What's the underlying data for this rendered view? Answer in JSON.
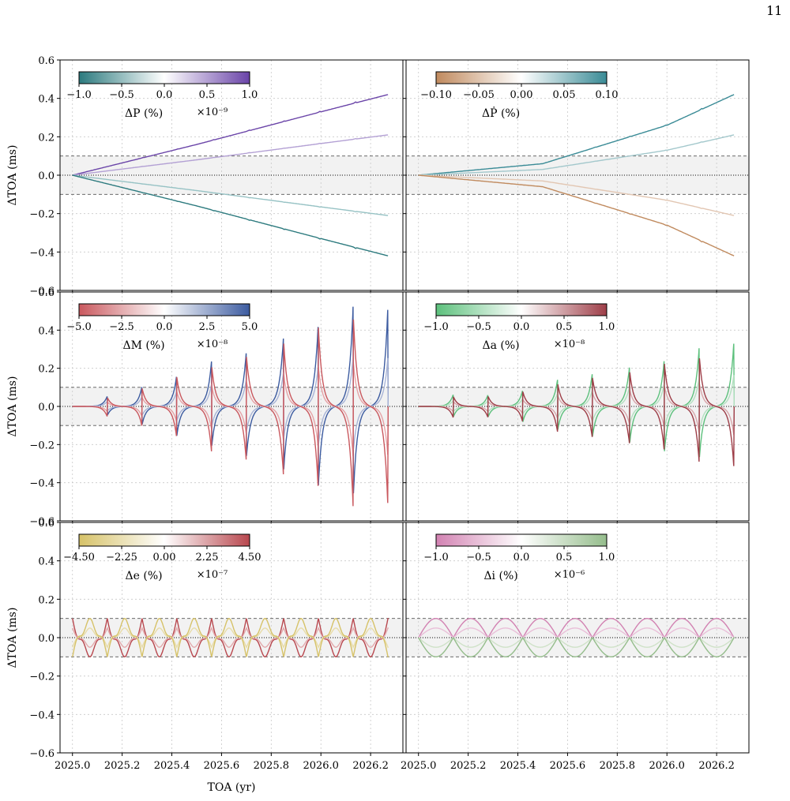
{
  "page_number": "11",
  "chart_data": [
    {
      "type": "line",
      "panel": "P",
      "xlim": [
        2024.95,
        2026.33
      ],
      "ylim": [
        -0.6,
        0.6
      ],
      "ylabel": "ΔTOA (ms)",
      "xlabel": "",
      "grid": true,
      "colorbar": {
        "label": "ΔP (%)",
        "multiplier": "×10⁻⁹",
        "ticks": [
          "−1.0",
          "−0.5",
          "0.0",
          "0.5",
          "1.0"
        ],
        "stops": [
          "#2c7a7e",
          "#ffffff",
          "#6a44a8"
        ],
        "placement": "top-left"
      },
      "series": [
        {
          "color": "#6a44a8",
          "values": [
            [
              2025.0,
              0.0
            ],
            [
              2025.5,
              0.16
            ],
            [
              2026.0,
              0.33
            ],
            [
              2026.27,
              0.42
            ]
          ]
        },
        {
          "color": "#b3a0d4",
          "values": [
            [
              2025.0,
              0.0
            ],
            [
              2025.5,
              0.08
            ],
            [
              2026.0,
              0.165
            ],
            [
              2026.27,
              0.21
            ]
          ]
        },
        {
          "color": "#96c2c4",
          "values": [
            [
              2025.0,
              0.0
            ],
            [
              2025.5,
              -0.08
            ],
            [
              2026.0,
              -0.165
            ],
            [
              2026.27,
              -0.21
            ]
          ]
        },
        {
          "color": "#2c7a7e",
          "values": [
            [
              2025.0,
              0.0
            ],
            [
              2025.5,
              -0.16
            ],
            [
              2026.0,
              -0.33
            ],
            [
              2026.27,
              -0.42
            ]
          ]
        }
      ]
    },
    {
      "type": "line",
      "panel": "Pdot",
      "xlim": [
        2024.95,
        2026.33
      ],
      "ylim": [
        -0.6,
        0.6
      ],
      "ylabel": "",
      "xlabel": "",
      "grid": true,
      "colorbar": {
        "label": "ΔṖ (%)",
        "multiplier": "",
        "ticks": [
          "−0.10",
          "−0.05",
          "0.00",
          "0.05",
          "0.10"
        ],
        "stops": [
          "#c08a5e",
          "#ffffff",
          "#3a8b96"
        ],
        "placement": "top-left"
      },
      "series": [
        {
          "color": "#3a8b96",
          "values": [
            [
              2025.0,
              0.0
            ],
            [
              2025.5,
              0.06
            ],
            [
              2026.0,
              0.26
            ],
            [
              2026.27,
              0.42
            ]
          ]
        },
        {
          "color": "#a3c8cc",
          "values": [
            [
              2025.0,
              0.0
            ],
            [
              2025.5,
              0.03
            ],
            [
              2026.0,
              0.13
            ],
            [
              2026.27,
              0.21
            ]
          ]
        },
        {
          "color": "#e2c6b2",
          "values": [
            [
              2025.0,
              0.0
            ],
            [
              2025.5,
              -0.03
            ],
            [
              2026.0,
              -0.13
            ],
            [
              2026.27,
              -0.21
            ]
          ]
        },
        {
          "color": "#c08a5e",
          "values": [
            [
              2025.0,
              0.0
            ],
            [
              2025.5,
              -0.06
            ],
            [
              2026.0,
              -0.26
            ],
            [
              2026.27,
              -0.42
            ]
          ]
        }
      ]
    },
    {
      "type": "line",
      "panel": "M",
      "xlim": [
        2024.95,
        2026.33
      ],
      "ylim": [
        -0.6,
        0.6
      ],
      "ylabel": "ΔTOA (ms)",
      "xlabel": "",
      "grid": true,
      "colorbar": {
        "label": "ΔM (%)",
        "multiplier": "×10⁻⁸",
        "ticks": [
          "−5.0",
          "−2.5",
          "0.0",
          "2.5",
          "5.0"
        ],
        "stops": [
          "#c9585e",
          "#ffffff",
          "#3c5ba0"
        ],
        "placement": "top-left"
      },
      "peaks": [
        [
          2025.14,
          0.06
        ],
        [
          2025.28,
          0.12
        ],
        [
          2025.42,
          0.19
        ],
        [
          2025.56,
          0.27
        ],
        [
          2025.7,
          0.33
        ],
        [
          2025.85,
          0.42
        ],
        [
          2025.99,
          0.51
        ],
        [
          2026.13,
          0.6
        ],
        [
          2026.27,
          0.6
        ]
      ],
      "series": [
        {
          "color": "#3c5ba0",
          "sign": 1,
          "scale": 1.0
        },
        {
          "color": "#a8b4d6",
          "sign": 1,
          "scale": 0.5
        },
        {
          "color": "#e6a2a6",
          "sign": -1,
          "scale": 0.5
        },
        {
          "color": "#c9585e",
          "sign": -1,
          "scale": 1.0
        }
      ]
    },
    {
      "type": "line",
      "panel": "a",
      "xlim": [
        2024.95,
        2026.33
      ],
      "ylim": [
        -0.6,
        0.6
      ],
      "ylabel": "",
      "xlabel": "",
      "grid": true,
      "colorbar": {
        "label": "Δa (%)",
        "multiplier": "×10⁻⁸",
        "ticks": [
          "−1.0",
          "−0.5",
          "0.0",
          "0.5",
          "1.0"
        ],
        "stops": [
          "#5cc07c",
          "#ffffff",
          "#9e3e48"
        ],
        "placement": "top-left"
      },
      "peaks": [
        [
          2025.28,
          0.07
        ],
        [
          2025.42,
          0.1
        ],
        [
          2025.56,
          0.16
        ],
        [
          2025.7,
          0.2
        ],
        [
          2025.85,
          0.24
        ],
        [
          2025.99,
          0.29
        ],
        [
          2026.13,
          0.35
        ],
        [
          2026.27,
          0.39
        ]
      ],
      "series": [
        {
          "color": "#5cc07c",
          "sign": 1,
          "scale": 1.0
        },
        {
          "color": "#b3e0c0",
          "sign": 1,
          "scale": 0.5
        },
        {
          "color": "#d8a6ab",
          "sign": -1,
          "scale": 0.45
        },
        {
          "color": "#9e3e48",
          "sign": -1,
          "scale": 0.95
        }
      ]
    },
    {
      "type": "line",
      "panel": "e",
      "xlim": [
        2024.95,
        2026.33
      ],
      "ylim": [
        -0.6,
        0.6
      ],
      "ylabel": "ΔTOA (ms)",
      "xlabel": "TOA (yr)",
      "grid": true,
      "colorbar": {
        "label": "Δe (%)",
        "multiplier": "×10⁻⁷",
        "ticks": [
          "−4.50",
          "−2.25",
          "0.00",
          "2.25",
          "4.50"
        ],
        "stops": [
          "#d6c268",
          "#ffffff",
          "#b8474e"
        ],
        "placement": "top-left"
      },
      "amplitude": 0.1,
      "series": [
        {
          "color": "#b8474e",
          "sign": 1,
          "scale": 1.0
        },
        {
          "color": "#e3a9ac",
          "sign": 1,
          "scale": 0.5
        },
        {
          "color": "#e8dca8",
          "sign": -1,
          "scale": 0.5
        },
        {
          "color": "#d6c268",
          "sign": -1,
          "scale": 1.0
        }
      ]
    },
    {
      "type": "line",
      "panel": "i",
      "xlim": [
        2024.95,
        2026.33
      ],
      "ylim": [
        -0.6,
        0.6
      ],
      "ylabel": "",
      "xlabel": "",
      "grid": true,
      "colorbar": {
        "label": "Δi (%)",
        "multiplier": "×10⁻⁶",
        "ticks": [
          "−1.0",
          "−0.5",
          "0.0",
          "0.5",
          "1.0"
        ],
        "stops": [
          "#d282b2",
          "#ffffff",
          "#95bd8c"
        ],
        "placement": "top-left"
      },
      "amplitude": 0.1,
      "series": [
        {
          "color": "#d282b2",
          "sign": 1,
          "scale": 1.0
        },
        {
          "color": "#e9bfd8",
          "sign": 1,
          "scale": 0.5
        },
        {
          "color": "#cfe2c8",
          "sign": -1,
          "scale": 0.5
        },
        {
          "color": "#95bd8c",
          "sign": -1,
          "scale": 1.0
        }
      ]
    }
  ],
  "yticks": [
    "−0.6",
    "−0.4",
    "−0.2",
    "0.0",
    "0.2",
    "0.4",
    "0.6"
  ],
  "ytick_values": [
    -0.6,
    -0.4,
    -0.2,
    0.0,
    0.2,
    0.4,
    0.6
  ],
  "xticks": [
    "2025.0",
    "2025.2",
    "2025.4",
    "2025.6",
    "2025.8",
    "2026.0",
    "2026.2"
  ],
  "xtick_values": [
    2025.0,
    2025.2,
    2025.4,
    2025.6,
    2025.8,
    2026.0,
    2026.2
  ],
  "band": [
    -0.1,
    0.1
  ]
}
